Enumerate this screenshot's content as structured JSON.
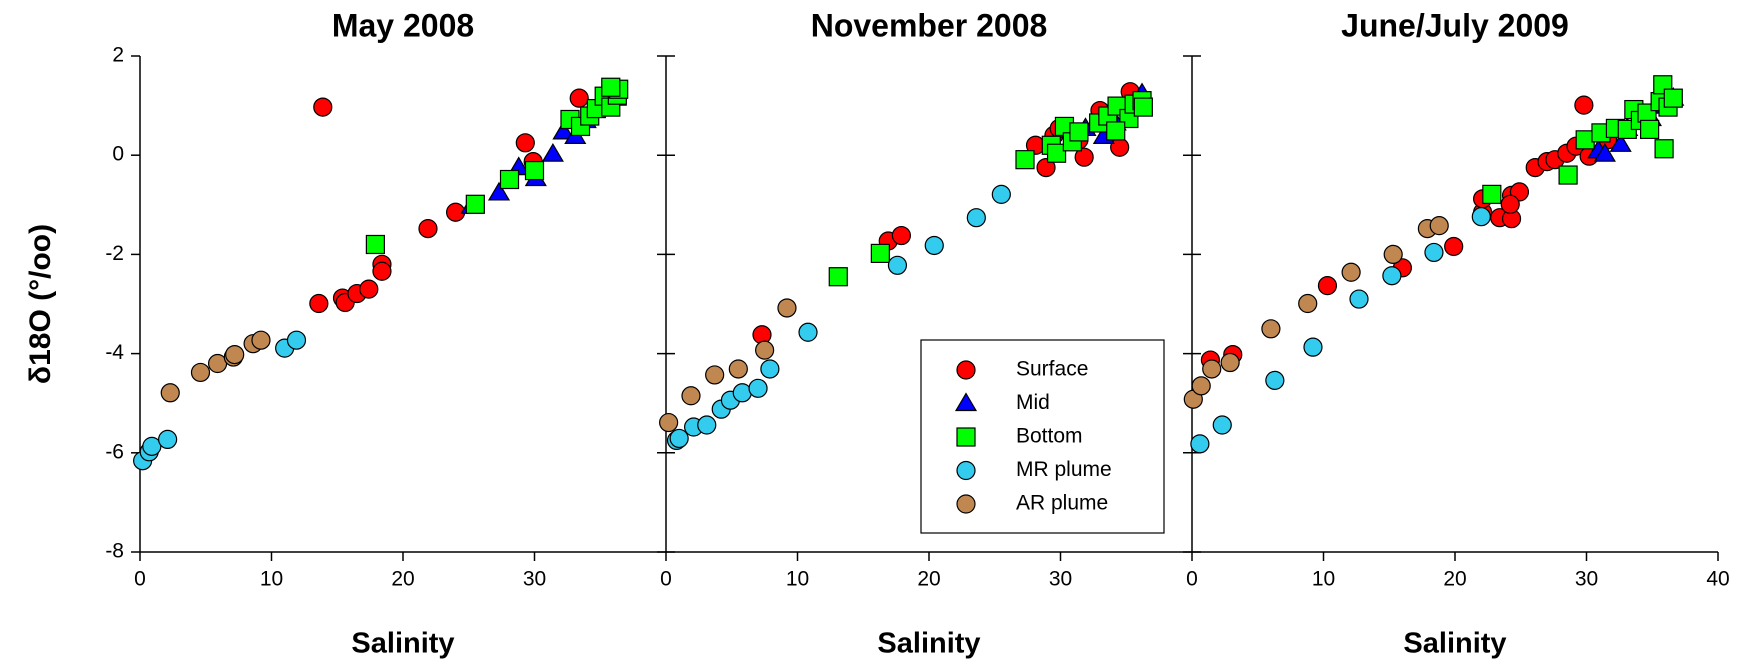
{
  "chart_data": [
    {
      "type": "scatter",
      "title": "May 2008",
      "x_label": "Salinity",
      "y_label": "δ18O (°/oo)",
      "xlim": [
        0,
        40
      ],
      "ylim": [
        -8,
        2
      ],
      "xticks": [
        0,
        10,
        20,
        30
      ],
      "yticks": [
        -8,
        -6,
        -4,
        -2,
        0,
        2
      ],
      "series": [
        {
          "color": "#ff0000",
          "marker": "circle",
          "x": [
            13.9,
            13.6,
            15.4,
            15.6,
            16.5,
            17.4,
            18.4,
            18.4,
            21.9,
            24.0,
            29.9,
            29.3,
            33.4,
            35.6
          ],
          "y": [
            0.97,
            -2.99,
            -2.88,
            -2.97,
            -2.79,
            -2.7,
            -2.2,
            -2.34,
            -1.48,
            -1.15,
            -0.13,
            0.25,
            1.15,
            1.2
          ]
        },
        {
          "color": "#0000ff",
          "marker": "triangle",
          "x": [
            25.2,
            27.3,
            28.8,
            30.1,
            31.4,
            32.2,
            33.1,
            33.9,
            36.2
          ],
          "y": [
            -1.03,
            -0.76,
            -0.25,
            -0.47,
            0.02,
            0.47,
            0.38,
            0.7,
            1.15
          ]
        },
        {
          "color": "#00ff00",
          "marker": "square",
          "x": [
            17.9,
            25.5,
            28.1,
            30.0,
            32.7,
            33.5,
            34.2,
            34.7,
            35.3,
            35.8,
            36.3,
            36.4,
            35.8
          ],
          "y": [
            -1.8,
            -0.99,
            -0.49,
            -0.31,
            0.72,
            0.58,
            0.79,
            0.94,
            1.19,
            0.97,
            1.21,
            1.33,
            1.37
          ]
        },
        {
          "color": "#33ccee",
          "marker": "circle",
          "x": [
            0.2,
            0.7,
            0.9,
            2.1,
            11.0,
            11.9
          ],
          "y": [
            -6.16,
            -5.98,
            -5.87,
            -5.73,
            -3.89,
            -3.73
          ]
        },
        {
          "color": "#c08850",
          "marker": "circle",
          "x": [
            2.3,
            4.6,
            5.9,
            7.1,
            7.2,
            8.6,
            9.2
          ],
          "y": [
            -4.79,
            -4.38,
            -4.2,
            -4.07,
            -4.02,
            -3.8,
            -3.73
          ]
        }
      ]
    },
    {
      "type": "scatter",
      "title": "November 2008",
      "x_label": "Salinity",
      "xlim": [
        0,
        40
      ],
      "ylim": [
        -8,
        2
      ],
      "xticks": [
        0,
        10,
        20,
        30
      ],
      "yticks": [
        -8,
        -6,
        -4,
        -2,
        0,
        2
      ],
      "legend": "lower right",
      "series": [
        {
          "name": "Surface",
          "color": "#ff0000",
          "marker": "circle",
          "x": [
            7.3,
            16.9,
            17.9,
            28.1,
            28.9,
            29.5,
            31.8,
            32.9,
            33.0,
            34.5,
            35.3,
            29.9,
            31.4
          ],
          "y": [
            -3.62,
            -1.73,
            -1.62,
            0.2,
            -0.25,
            0.4,
            -0.04,
            0.65,
            0.9,
            0.16,
            1.28,
            0.54,
            0.31
          ]
        },
        {
          "name": "Mid",
          "color": "#0000ff",
          "marker": "triangle",
          "x": [
            31.9,
            33.3,
            36.2,
            34.2
          ],
          "y": [
            0.54,
            0.38,
            1.24,
            0.65
          ]
        },
        {
          "name": "Bottom",
          "color": "#00ff00",
          "marker": "square",
          "x": [
            13.1,
            16.3,
            27.3,
            29.3,
            29.7,
            30.3,
            30.9,
            31.4,
            32.9,
            33.6,
            34.3,
            35.2,
            35.6,
            36.2,
            36.3,
            34.2
          ],
          "y": [
            -2.45,
            -1.98,
            -0.09,
            0.2,
            0.04,
            0.58,
            0.27,
            0.47,
            0.65,
            0.79,
            0.99,
            0.74,
            1.03,
            1.1,
            0.97,
            0.49
          ]
        },
        {
          "name": "MR plume",
          "color": "#33ccee",
          "marker": "circle",
          "x": [
            0.8,
            1.0,
            2.1,
            3.1,
            4.2,
            4.9,
            5.8,
            7.0,
            7.9,
            10.8,
            17.6,
            20.4,
            23.6,
            25.5
          ],
          "y": [
            -5.75,
            -5.71,
            -5.48,
            -5.44,
            -5.12,
            -4.94,
            -4.79,
            -4.7,
            -4.31,
            -3.57,
            -2.22,
            -1.82,
            -1.26,
            -0.79
          ]
        },
        {
          "name": "AR plume",
          "color": "#c08850",
          "marker": "circle",
          "x": [
            0.2,
            1.9,
            3.7,
            5.5,
            7.5,
            9.2
          ],
          "y": [
            -5.39,
            -4.85,
            -4.43,
            -4.31,
            -3.93,
            -3.08
          ]
        }
      ]
    },
    {
      "type": "scatter",
      "title": "June/July 2009",
      "x_label": "Salinity",
      "xlim": [
        0,
        40
      ],
      "ylim": [
        -8,
        2
      ],
      "xticks": [
        0,
        10,
        20,
        30,
        40
      ],
      "yticks": [
        -8,
        -6,
        -4,
        -2,
        0,
        2
      ],
      "series": [
        {
          "color": "#ff0000",
          "marker": "circle",
          "x": [
            1.4,
            3.1,
            10.3,
            16.0,
            19.9,
            22.1,
            23.4,
            24.3,
            24.3,
            24.9,
            22.1,
            24.2,
            26.1,
            27.0,
            27.6,
            28.5,
            29.2,
            29.8,
            30.2,
            31.6
          ],
          "y": [
            -4.13,
            -4.02,
            -2.63,
            -2.27,
            -1.84,
            -1.15,
            -1.26,
            -1.28,
            -0.81,
            -0.74,
            -0.88,
            -0.99,
            -0.25,
            -0.13,
            -0.09,
            0.04,
            0.18,
            1.01,
            -0.02,
            0.31
          ]
        },
        {
          "color": "#0000ff",
          "marker": "triangle",
          "x": [
            30.9,
            31.4,
            32.6,
            33.1,
            34.9,
            35.9,
            36.6
          ],
          "y": [
            0.09,
            0.02,
            0.22,
            0.54,
            0.74,
            0.99,
            1.15
          ]
        },
        {
          "color": "#00ff00",
          "marker": "square",
          "x": [
            22.8,
            28.6,
            29.9,
            31.1,
            32.2,
            33.1,
            33.6,
            34.1,
            34.6,
            35.6,
            35.8,
            35.9,
            36.2,
            36.6,
            34.8
          ],
          "y": [
            -0.79,
            -0.4,
            0.31,
            0.45,
            0.54,
            0.52,
            0.92,
            0.7,
            0.85,
            1.08,
            1.42,
            0.13,
            0.97,
            1.15,
            0.52
          ]
        },
        {
          "color": "#33ccee",
          "marker": "circle",
          "x": [
            0.6,
            2.3,
            6.3,
            9.2,
            12.7,
            15.2,
            18.4,
            22.0
          ],
          "y": [
            -5.82,
            -5.44,
            -4.54,
            -3.87,
            -2.9,
            -2.43,
            -1.96,
            -1.24
          ]
        },
        {
          "color": "#c08850",
          "marker": "circle",
          "x": [
            0.1,
            0.7,
            1.5,
            2.9,
            6.0,
            8.8,
            12.1,
            15.3,
            17.9,
            18.8
          ],
          "y": [
            -4.92,
            -4.65,
            -4.31,
            -4.18,
            -3.5,
            -2.99,
            -2.36,
            -2.0,
            -1.48,
            -1.42
          ]
        }
      ]
    }
  ]
}
